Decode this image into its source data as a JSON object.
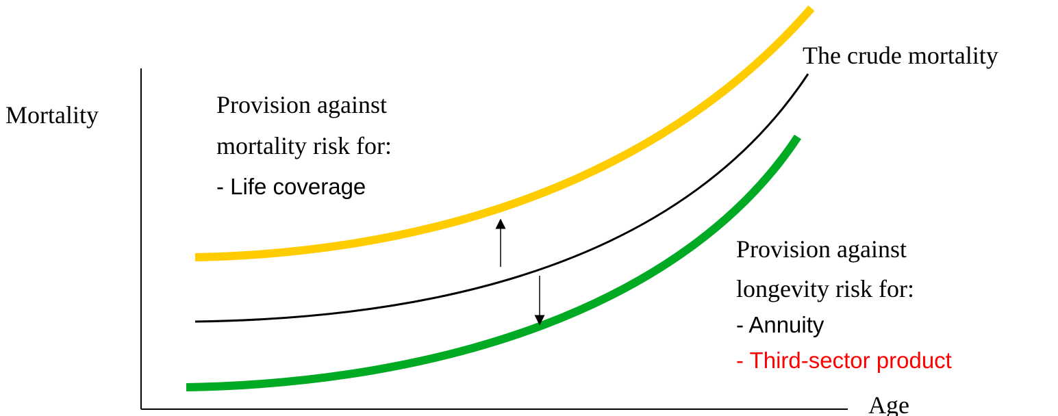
{
  "axes": {
    "y_label": "Mortality",
    "x_label": "Age"
  },
  "curves": {
    "crude": {
      "label": "The crude mortality",
      "color": "#000000"
    },
    "mortality_provision": {
      "color": "#FFCC00"
    },
    "longevity_provision": {
      "color": "#00AA22"
    }
  },
  "mortality_note": {
    "line1": "Provision against",
    "line2": "mortality risk for:",
    "items": [
      "- Life coverage"
    ]
  },
  "longevity_note": {
    "line1": "Provision against",
    "line2": "longevity risk for:",
    "items": [
      "- Annuity",
      "- Third-sector product"
    ],
    "highlight_color": "#FF0000"
  }
}
